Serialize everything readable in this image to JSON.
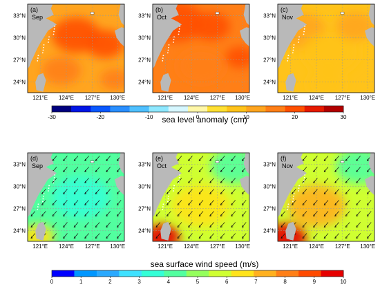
{
  "colors": {
    "land": "#b9b9b9",
    "coast_dots": "#ffffff",
    "grid": "#9a9a9a",
    "arrow": "#111111"
  },
  "chart_data": [
    {
      "type": "heatmap",
      "panel_row": "top",
      "title": "sea level anomaly (cm)",
      "units": "cm",
      "colorbar": {
        "min": -30,
        "max": 30,
        "ticks": [
          "-30",
          "-20",
          "-10",
          "0",
          "10",
          "20",
          "30"
        ],
        "colors": [
          "#00007f",
          "#0016e6",
          "#0a58ff",
          "#2a8fff",
          "#4fc0ff",
          "#8ee8ff",
          "#d6f7ff",
          "#fff7a8",
          "#ffe033",
          "#ffc31a",
          "#ffa51f",
          "#ff7f17",
          "#ff5000",
          "#e61a00",
          "#b20000"
        ]
      },
      "x_ticks": [
        "121°E",
        "124°E",
        "127°E",
        "130°E"
      ],
      "y_ticks": [
        "33°N",
        "30°N",
        "27°N",
        "24°N"
      ],
      "panels": [
        {
          "label": "(a)",
          "month": "Sep",
          "base_value": 13,
          "blobs": [
            [
              0.5,
              0.35,
              0.25,
              19
            ],
            [
              0.8,
              0.45,
              0.2,
              18
            ],
            [
              0.35,
              0.75,
              0.2,
              15
            ],
            [
              0.9,
              0.85,
              0.15,
              16
            ]
          ]
        },
        {
          "label": "(b)",
          "month": "Oct",
          "base_value": 15,
          "blobs": [
            [
              0.25,
              0.2,
              0.28,
              20
            ],
            [
              0.6,
              0.25,
              0.2,
              19
            ],
            [
              0.9,
              0.6,
              0.15,
              20
            ],
            [
              0.5,
              0.7,
              0.25,
              14
            ]
          ]
        },
        {
          "label": "(c)",
          "month": "Nov",
          "base_value": 9,
          "blobs": [
            [
              0.25,
              0.3,
              0.25,
              13
            ],
            [
              0.55,
              0.55,
              0.3,
              9
            ],
            [
              0.8,
              0.25,
              0.2,
              10
            ],
            [
              0.5,
              0.9,
              0.2,
              8
            ]
          ]
        }
      ]
    },
    {
      "type": "heatmap",
      "panel_row": "bottom",
      "title": "sea surface wind speed (m/s)",
      "units": "m/s",
      "colorbar": {
        "min": 0,
        "max": 10,
        "ticks": [
          "0",
          "1",
          "2",
          "3",
          "4",
          "5",
          "6",
          "7",
          "8",
          "9",
          "10"
        ],
        "colors": [
          "#0000ff",
          "#0096ff",
          "#2aa9ff",
          "#3ee1ff",
          "#33ffd6",
          "#52ff9f",
          "#94ff5c",
          "#cfff31",
          "#ffe31a",
          "#ffb01f",
          "#ff7f17",
          "#ff4a00",
          "#e60000"
        ]
      },
      "x_ticks": [
        "121°E",
        "124°E",
        "127°E",
        "130°E"
      ],
      "y_ticks": [
        "33°N",
        "30°N",
        "27°N",
        "24°N"
      ],
      "panels": [
        {
          "label": "(d)",
          "month": "Sep",
          "base_value": 4.2,
          "blobs": [
            [
              0.1,
              0.95,
              0.18,
              6.5
            ],
            [
              0.55,
              0.5,
              0.3,
              3.6
            ]
          ]
        },
        {
          "label": "(e)",
          "month": "Oct",
          "base_value": 5.8,
          "blobs": [
            [
              0.1,
              0.95,
              0.18,
              9.5
            ],
            [
              0.5,
              0.6,
              0.3,
              6.5
            ],
            [
              0.85,
              0.15,
              0.25,
              4.2
            ]
          ]
        },
        {
          "label": "(f)",
          "month": "Nov",
          "base_value": 5.8,
          "blobs": [
            [
              0.1,
              0.95,
              0.2,
              9.8
            ],
            [
              0.4,
              0.6,
              0.3,
              7.2
            ],
            [
              0.85,
              0.15,
              0.25,
              4.3
            ]
          ]
        }
      ],
      "wind_direction": "northeasterly"
    }
  ]
}
